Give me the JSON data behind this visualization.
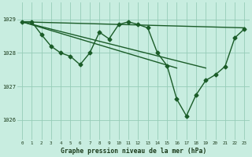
{
  "title": "Graphe pression niveau de la mer (hPa)",
  "bg_color": "#c8ede0",
  "grid_color": "#96ccb8",
  "line_color": "#1a5c28",
  "marker": "D",
  "markersize": 2.5,
  "linewidth": 1.0,
  "xlim": [
    -0.5,
    23.5
  ],
  "ylim": [
    1025.4,
    1029.5
  ],
  "yticks": [
    1026,
    1027,
    1028,
    1029
  ],
  "xticks": [
    0,
    1,
    2,
    3,
    4,
    5,
    6,
    7,
    8,
    9,
    10,
    11,
    12,
    13,
    14,
    15,
    16,
    17,
    18,
    19,
    20,
    21,
    22,
    23
  ],
  "series": [
    {
      "x": [
        0,
        23
      ],
      "y": [
        1028.93,
        1028.75
      ],
      "has_markers": false
    },
    {
      "x": [
        0,
        19
      ],
      "y": [
        1028.93,
        1027.55
      ],
      "has_markers": false
    },
    {
      "x": [
        0,
        16
      ],
      "y": [
        1028.93,
        1027.55
      ],
      "has_markers": false
    },
    {
      "x": [
        0,
        1,
        2,
        3,
        4,
        5,
        6,
        7,
        8,
        9,
        10,
        11,
        12,
        13,
        14,
        15,
        16,
        17,
        18,
        19,
        20,
        21,
        22,
        23
      ],
      "y": [
        1028.93,
        1028.93,
        1028.55,
        1028.2,
        1028.0,
        1027.9,
        1027.65,
        1028.0,
        1028.62,
        1028.42,
        1028.85,
        1028.93,
        1028.85,
        1028.75,
        1028.0,
        1027.62,
        1026.62,
        1026.12,
        1026.75,
        1027.18,
        1027.35,
        1027.6,
        1028.45,
        1028.72
      ],
      "has_markers": true
    }
  ]
}
